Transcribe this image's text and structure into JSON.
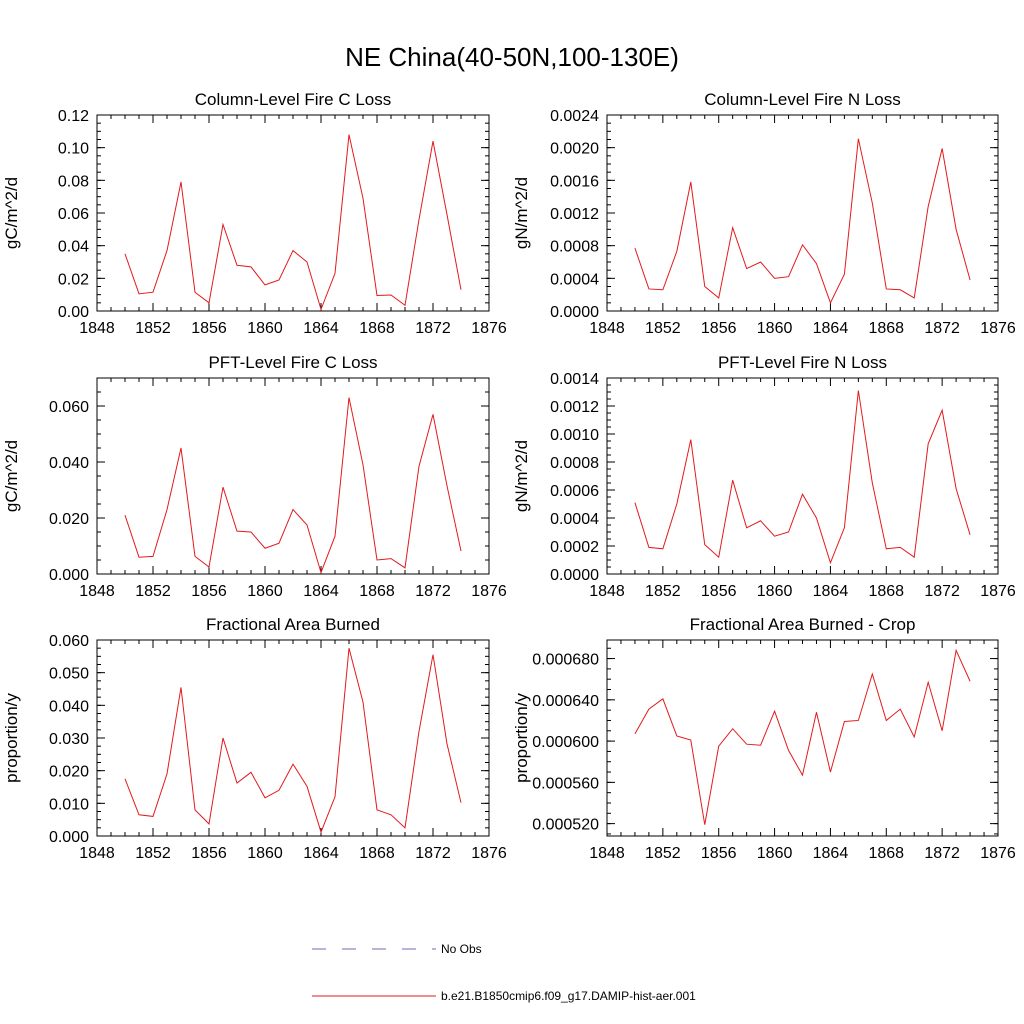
{
  "figure": {
    "title": "NE China(40-50N,100-130E)"
  },
  "legend": {
    "entries": [
      {
        "label": "No Obs",
        "color": "#6b6bb3",
        "style": "dashed"
      },
      {
        "label": "b.e21.B1850cmip6.f09_g17.DAMIP-hist-aer.001",
        "color": "#e31a1c",
        "style": "solid"
      }
    ]
  },
  "chart_data": [
    {
      "type": "line",
      "title": "Column-Level Fire C Loss",
      "ylabel": "gC/m^2/d",
      "xlim": [
        1848,
        1876
      ],
      "ylim": [
        0,
        0.12
      ],
      "xticks": [
        "1848",
        "1852",
        "1856",
        "1860",
        "1864",
        "1868",
        "1872",
        "1876"
      ],
      "yticks": [
        "0.00",
        "0.02",
        "0.04",
        "0.06",
        "0.08",
        "0.10",
        "0.12"
      ],
      "x": [
        1850,
        1851,
        1852,
        1853,
        1854,
        1855,
        1856,
        1857,
        1858,
        1859,
        1860,
        1861,
        1862,
        1863,
        1864,
        1865,
        1866,
        1867,
        1868,
        1869,
        1870,
        1871,
        1872,
        1873,
        1874
      ],
      "series": [
        {
          "color": "#e31a1c",
          "values": [
            0.035,
            0.0105,
            0.0115,
            0.037,
            0.079,
            0.0115,
            0.005,
            0.053,
            0.028,
            0.027,
            0.016,
            0.019,
            0.037,
            0.03,
            0.001,
            0.023,
            0.108,
            0.069,
            0.0095,
            0.0098,
            0.0035,
            0.056,
            0.104,
            0.059,
            0.013
          ]
        }
      ]
    },
    {
      "type": "line",
      "title": "Column-Level Fire N Loss",
      "ylabel": "gN/m^2/d",
      "xlim": [
        1848,
        1876
      ],
      "ylim": [
        0,
        0.0024
      ],
      "xticks": [
        "1848",
        "1852",
        "1856",
        "1860",
        "1864",
        "1868",
        "1872",
        "1876"
      ],
      "yticks": [
        "0.0000",
        "0.0004",
        "0.0008",
        "0.0012",
        "0.0016",
        "0.0020",
        "0.0024"
      ],
      "x": [
        1850,
        1851,
        1852,
        1853,
        1854,
        1855,
        1856,
        1857,
        1858,
        1859,
        1860,
        1861,
        1862,
        1863,
        1864,
        1865,
        1866,
        1867,
        1868,
        1869,
        1870,
        1871,
        1872,
        1873,
        1874
      ],
      "series": [
        {
          "color": "#e31a1c",
          "values": [
            0.00077,
            0.00027,
            0.00026,
            0.00073,
            0.00158,
            0.0003,
            0.00016,
            0.00102,
            0.00052,
            0.0006,
            0.0004,
            0.00042,
            0.00081,
            0.00058,
            0.0001,
            0.00045,
            0.00211,
            0.00132,
            0.00027,
            0.00026,
            0.00016,
            0.00128,
            0.00199,
            0.001,
            0.00038
          ]
        }
      ]
    },
    {
      "type": "line",
      "title": "PFT-Level Fire C Loss",
      "ylabel": "gC/m^2/d",
      "xlim": [
        1848,
        1876
      ],
      "ylim": [
        0,
        0.07
      ],
      "xticks": [
        "1848",
        "1852",
        "1856",
        "1860",
        "1864",
        "1868",
        "1872",
        "1876"
      ],
      "yticks": [
        "0.000",
        "0.020",
        "0.040",
        "0.060"
      ],
      "ytick_values": [
        0,
        0.02,
        0.04,
        0.06
      ],
      "x": [
        1850,
        1851,
        1852,
        1853,
        1854,
        1855,
        1856,
        1857,
        1858,
        1859,
        1860,
        1861,
        1862,
        1863,
        1864,
        1865,
        1866,
        1867,
        1868,
        1869,
        1870,
        1871,
        1872,
        1873,
        1874
      ],
      "series": [
        {
          "color": "#e31a1c",
          "values": [
            0.021,
            0.006,
            0.0063,
            0.023,
            0.045,
            0.0063,
            0.0025,
            0.031,
            0.0153,
            0.015,
            0.0092,
            0.011,
            0.023,
            0.0175,
            0.0005,
            0.0135,
            0.063,
            0.039,
            0.005,
            0.0055,
            0.0022,
            0.0385,
            0.057,
            0.0315,
            0.0082
          ]
        }
      ]
    },
    {
      "type": "line",
      "title": "PFT-Level Fire N Loss",
      "ylabel": "gN/m^2/d",
      "xlim": [
        1848,
        1876
      ],
      "ylim": [
        0,
        0.0014
      ],
      "xticks": [
        "1848",
        "1852",
        "1856",
        "1860",
        "1864",
        "1868",
        "1872",
        "1876"
      ],
      "yticks": [
        "0.0000",
        "0.0002",
        "0.0004",
        "0.0006",
        "0.0008",
        "0.0010",
        "0.0012",
        "0.0014"
      ],
      "x": [
        1850,
        1851,
        1852,
        1853,
        1854,
        1855,
        1856,
        1857,
        1858,
        1859,
        1860,
        1861,
        1862,
        1863,
        1864,
        1865,
        1866,
        1867,
        1868,
        1869,
        1870,
        1871,
        1872,
        1873,
        1874
      ],
      "series": [
        {
          "color": "#e31a1c",
          "values": [
            0.00051,
            0.00019,
            0.00018,
            0.0005,
            0.00096,
            0.00021,
            0.00012,
            0.00067,
            0.00033,
            0.00038,
            0.00027,
            0.0003,
            0.00057,
            0.0004,
            8e-05,
            0.00033,
            0.00131,
            0.00065,
            0.00018,
            0.00019,
            0.00012,
            0.00093,
            0.00117,
            0.00061,
            0.00028
          ]
        }
      ]
    },
    {
      "type": "line",
      "title": "Fractional Area Burned",
      "ylabel": "proportion/y",
      "xlim": [
        1848,
        1876
      ],
      "ylim": [
        0,
        0.06
      ],
      "xticks": [
        "1848",
        "1852",
        "1856",
        "1860",
        "1864",
        "1868",
        "1872",
        "1876"
      ],
      "yticks": [
        "0.000",
        "0.010",
        "0.020",
        "0.030",
        "0.040",
        "0.050",
        "0.060"
      ],
      "x": [
        1850,
        1851,
        1852,
        1853,
        1854,
        1855,
        1856,
        1857,
        1858,
        1859,
        1860,
        1861,
        1862,
        1863,
        1864,
        1865,
        1866,
        1867,
        1868,
        1869,
        1870,
        1871,
        1872,
        1873,
        1874
      ],
      "series": [
        {
          "color": "#e31a1c",
          "values": [
            0.0175,
            0.0065,
            0.006,
            0.019,
            0.0455,
            0.008,
            0.0037,
            0.03,
            0.0162,
            0.0195,
            0.0117,
            0.014,
            0.022,
            0.0152,
            0.0012,
            0.012,
            0.0575,
            0.041,
            0.008,
            0.0065,
            0.0025,
            0.032,
            0.0555,
            0.0282,
            0.0102
          ]
        }
      ]
    },
    {
      "type": "line",
      "title": "Fractional Area Burned - Crop",
      "ylabel": "proportion/y",
      "xlim": [
        1848,
        1876
      ],
      "ylim": [
        0.000508,
        0.000698
      ],
      "xticks": [
        "1848",
        "1852",
        "1856",
        "1860",
        "1864",
        "1868",
        "1872",
        "1876"
      ],
      "yticks": [
        "0.000520",
        "0.000560",
        "0.000600",
        "0.000640",
        "0.000680"
      ],
      "ytick_values": [
        0.00052,
        0.00056,
        0.0006,
        0.00064,
        0.00068
      ],
      "x": [
        1850,
        1851,
        1852,
        1853,
        1854,
        1855,
        1856,
        1857,
        1858,
        1859,
        1860,
        1861,
        1862,
        1863,
        1864,
        1865,
        1866,
        1867,
        1868,
        1869,
        1870,
        1871,
        1872,
        1873,
        1874
      ],
      "series": [
        {
          "color": "#e31a1c",
          "values": [
            0.000607,
            0.000631,
            0.000641,
            0.000605,
            0.000601,
            0.000519,
            0.000595,
            0.000612,
            0.000597,
            0.000596,
            0.000629,
            0.000591,
            0.000567,
            0.000628,
            0.00057,
            0.000619,
            0.00062,
            0.000665,
            0.00062,
            0.000631,
            0.000604,
            0.000657,
            0.00061,
            0.000688,
            0.000658
          ]
        }
      ]
    }
  ]
}
